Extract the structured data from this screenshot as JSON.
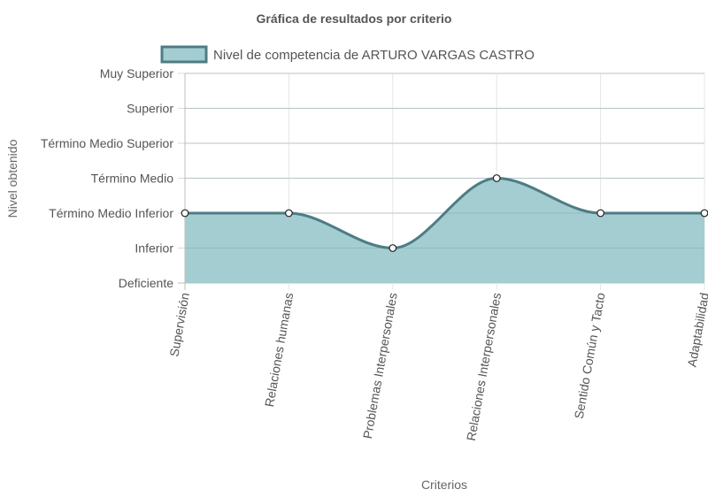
{
  "chart_data": {
    "type": "line",
    "title": "Gráfica de resultados por criterio",
    "xlabel": "Criterios",
    "ylabel": "Nivel obtenido",
    "categories": [
      "Supervisión",
      "Relaciones humanas",
      "Problemas Interpersonales",
      "Relaciones Interpersonales",
      "Sentido Común y Tacto",
      "Adaptabilidad"
    ],
    "y_levels": [
      "Deficiente",
      "Inferior",
      "Término Medio Inferior",
      "Término Medio",
      "Término Medio Superior",
      "Superior",
      "Muy Superior"
    ],
    "ylim": [
      0,
      6
    ],
    "series": [
      {
        "name": "Nivel de competencia de ARTURO VARGAS CASTRO",
        "values": [
          2,
          2,
          1,
          3,
          2,
          2
        ],
        "fill": true
      }
    ],
    "grid": true,
    "legend_position": "top",
    "colors": {
      "line": "#4e7c85",
      "fill": "#a3cdd0",
      "grid": "#e5e5e5",
      "axis": "#bdbdbd"
    }
  }
}
